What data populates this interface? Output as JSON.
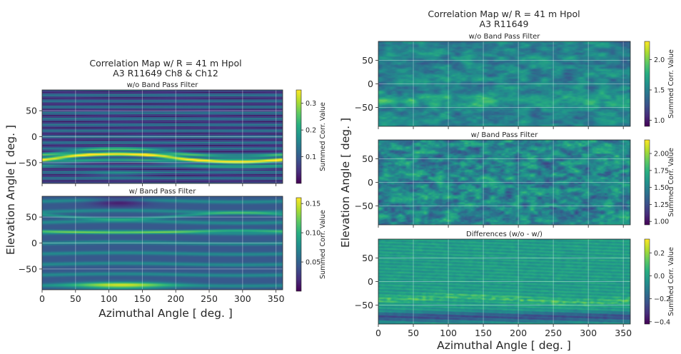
{
  "figure_left": {
    "title_line1": "Correlation Map w/ R = 41 m Hpol",
    "title_line2": "A3 R11649 Ch8 & Ch12",
    "ylabel": "Elevation Angle [ deg. ]",
    "xlabel": "Azimuthal Angle [ deg. ]"
  },
  "figure_right": {
    "title_line1": "Correlation Map w/ R = 41 m Hpol",
    "title_line2": "A3 R11649",
    "ylabel": "Elevation Angle [ deg. ]",
    "xlabel": "Azimuthal Angle [ deg. ]"
  },
  "colors": {
    "viridis_low": "#440154",
    "viridis_mid": "#21918c",
    "viridis_high": "#fde725"
  },
  "chart_data": [
    {
      "type": "heatmap",
      "id": "left_top",
      "subtitle": "w/o Band Pass Filter",
      "pattern": "bands",
      "xlim": [
        0,
        360
      ],
      "ylim": [
        -90,
        90
      ],
      "xticks": [
        0,
        50,
        100,
        150,
        200,
        250,
        300,
        350
      ],
      "yticks": [
        -50,
        0,
        50
      ],
      "show_xticks": false,
      "colorbar": {
        "label": "Summed Corr. Value",
        "range": [
          0.0,
          0.35
        ],
        "ticks": [
          0.1,
          0.2,
          0.3
        ],
        "tick_labels": [
          "0.1",
          "0.2",
          "0.3"
        ]
      }
    },
    {
      "type": "heatmap",
      "id": "left_bottom",
      "subtitle": "w/ Band Pass Filter",
      "pattern": "fringes",
      "xlim": [
        0,
        360
      ],
      "ylim": [
        -90,
        90
      ],
      "xticks": [
        0,
        50,
        100,
        150,
        200,
        250,
        300,
        350
      ],
      "yticks": [
        -50,
        0,
        50
      ],
      "show_xticks": true,
      "colorbar": {
        "label": "Summed Corr. Value",
        "range": [
          0.0,
          0.16
        ],
        "ticks": [
          0.05,
          0.1,
          0.15
        ],
        "tick_labels": [
          "0.05",
          "0.10",
          "0.15"
        ]
      }
    },
    {
      "type": "heatmap",
      "id": "right_top",
      "subtitle": "w/o Band Pass Filter",
      "pattern": "noise_band",
      "xlim": [
        0,
        360
      ],
      "ylim": [
        -90,
        90
      ],
      "xticks": [
        0,
        50,
        100,
        150,
        200,
        250,
        300,
        350
      ],
      "yticks": [
        -50,
        0,
        50
      ],
      "show_xticks": false,
      "colorbar": {
        "label": "Summed Corr. Value",
        "range": [
          0.9,
          2.3
        ],
        "ticks": [
          1.0,
          1.5,
          2.0
        ],
        "tick_labels": [
          "1.0",
          "1.5",
          "2.0"
        ]
      }
    },
    {
      "type": "heatmap",
      "id": "right_mid",
      "subtitle": "w/ Band Pass Filter",
      "pattern": "noise",
      "xlim": [
        0,
        360
      ],
      "ylim": [
        -90,
        90
      ],
      "xticks": [
        0,
        50,
        100,
        150,
        200,
        250,
        300,
        350
      ],
      "yticks": [
        -50,
        0,
        50
      ],
      "show_xticks": false,
      "colorbar": {
        "label": "Summed Corr. Value",
        "range": [
          0.95,
          2.2
        ],
        "ticks": [
          1.0,
          1.25,
          1.5,
          1.75,
          2.0
        ],
        "tick_labels": [
          "1.00",
          "1.25",
          "1.50",
          "1.75",
          "2.00"
        ]
      }
    },
    {
      "type": "heatmap",
      "id": "right_bottom",
      "subtitle": "Differences (w/o - w/)",
      "pattern": "diff",
      "xlim": [
        0,
        360
      ],
      "ylim": [
        -90,
        90
      ],
      "xticks": [
        0,
        50,
        100,
        150,
        200,
        250,
        300,
        350
      ],
      "yticks": [
        -50,
        0,
        50
      ],
      "show_xticks": true,
      "colorbar": {
        "label": "Summed Corr. Value",
        "range": [
          -0.42,
          0.32
        ],
        "ticks": [
          -0.4,
          -0.2,
          0.0,
          0.2
        ],
        "tick_labels": [
          "−0.4",
          "−0.2",
          "0.0",
          "0.2"
        ]
      }
    }
  ]
}
